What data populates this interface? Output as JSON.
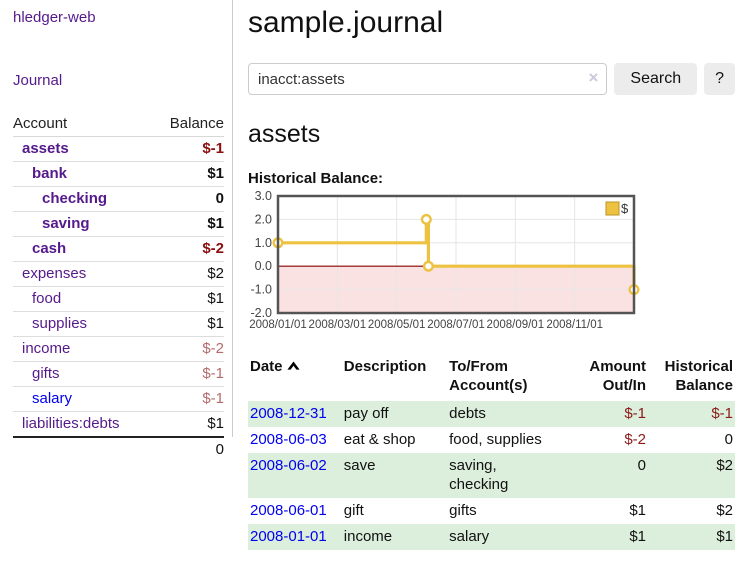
{
  "colors": {
    "link_purple": "#551A8B",
    "link_blue": "#0000EE",
    "negative_strong": "#8b0f0f",
    "negative_soft": "#b36b6b",
    "row_stripe_green": "#dceedc",
    "chart_line": "#edc240",
    "chart_line_border": "#b89526",
    "chart_negative_area": "#fbe2e2",
    "zero_line": "#8b0000",
    "grid": "#e6e6e6",
    "plot_border": "#545454"
  },
  "sidebar": {
    "brand": "hledger-web",
    "nav": {
      "journal": "Journal"
    },
    "table": {
      "account_header": "Account",
      "balance_header": "Balance"
    },
    "accounts": [
      {
        "label": "assets",
        "level": 1,
        "bold": true,
        "balance": "$-1",
        "balance_tone": "neg-strong",
        "link_tone": "purple"
      },
      {
        "label": "bank",
        "level": 2,
        "bold": true,
        "balance": "$1",
        "balance_tone": "pos",
        "link_tone": "purple"
      },
      {
        "label": "checking",
        "level": 3,
        "bold": true,
        "balance": "0",
        "balance_tone": "pos",
        "link_tone": "purple"
      },
      {
        "label": "saving",
        "level": 3,
        "bold": true,
        "balance": "$1",
        "balance_tone": "pos",
        "link_tone": "purple"
      },
      {
        "label": "cash",
        "level": 2,
        "bold": true,
        "balance": "$-2",
        "balance_tone": "neg-strong",
        "link_tone": "purple"
      },
      {
        "label": "expenses",
        "level": 1,
        "bold": false,
        "balance": "$2",
        "balance_tone": "pos",
        "link_tone": "purple"
      },
      {
        "label": "food",
        "level": 2,
        "bold": false,
        "balance": "$1",
        "balance_tone": "pos",
        "link_tone": "purple"
      },
      {
        "label": "supplies",
        "level": 2,
        "bold": false,
        "balance": "$1",
        "balance_tone": "pos",
        "link_tone": "purple"
      },
      {
        "label": "income",
        "level": 1,
        "bold": false,
        "balance": "$-2",
        "balance_tone": "neg-soft",
        "link_tone": "purple"
      },
      {
        "label": "gifts",
        "level": 2,
        "bold": false,
        "balance": "$-1",
        "balance_tone": "neg-soft",
        "link_tone": "purple"
      },
      {
        "label": "salary",
        "level": 2,
        "bold": false,
        "balance": "$-1",
        "balance_tone": "neg-soft",
        "link_tone": "blue"
      },
      {
        "label": "liabilities:debts",
        "level": 1,
        "bold": false,
        "balance": "$1",
        "balance_tone": "pos",
        "link_tone": "purple"
      }
    ],
    "total": "0"
  },
  "main": {
    "title": "sample.journal",
    "search": {
      "value": "inacct:assets",
      "clear_icon": "×",
      "button": "Search",
      "help_button": "?"
    },
    "account_heading": "assets",
    "chart_label": "Historical Balance:"
  },
  "register": {
    "headers": {
      "date": "Date",
      "description": "Description",
      "accounts": "To/From\nAccount(s)",
      "amount": "Amount\nOut/In",
      "balance": "Historical\nBalance"
    },
    "sort": {
      "column": "date",
      "direction": "ascending"
    },
    "rows": [
      {
        "date": "2008-12-31",
        "description": "pay off",
        "accounts": "debts",
        "amount": "$-1",
        "amount_negative": true,
        "balance": "$-1",
        "balance_negative": true,
        "shade": true
      },
      {
        "date": "2008-06-03",
        "description": "eat & shop",
        "accounts": "food, supplies",
        "amount": "$-2",
        "amount_negative": true,
        "balance": "0",
        "balance_negative": false,
        "shade": false
      },
      {
        "date": "2008-06-02",
        "description": "save",
        "accounts": "saving,\nchecking",
        "amount": "0",
        "amount_negative": false,
        "balance": "$2",
        "balance_negative": false,
        "shade": true
      },
      {
        "date": "2008-06-01",
        "description": "gift",
        "accounts": "gifts",
        "amount": "$1",
        "amount_negative": false,
        "balance": "$2",
        "balance_negative": false,
        "shade": false
      },
      {
        "date": "2008-01-01",
        "description": "income",
        "accounts": "salary",
        "amount": "$1",
        "amount_negative": false,
        "balance": "$1",
        "balance_negative": false,
        "shade": true
      }
    ]
  },
  "chart_data": {
    "type": "line",
    "step": true,
    "title": "Historical Balance of assets",
    "series": [
      {
        "name": "$",
        "points": [
          {
            "date": "2008-01-01",
            "m": 0,
            "v": 1
          },
          {
            "date": "2008-06-01",
            "m": 5.0,
            "v": 2
          },
          {
            "date": "2008-06-03",
            "m": 5.07,
            "v": 0
          },
          {
            "date": "2008-12-31",
            "m": 12,
            "v": -1
          }
        ]
      }
    ],
    "ylim": [
      -2,
      3
    ],
    "xlim_months": 12,
    "yticks": [
      {
        "v": 3,
        "label": "3.0"
      },
      {
        "v": 2,
        "label": "2.0"
      },
      {
        "v": 1,
        "label": "1.0"
      },
      {
        "v": 0,
        "label": "0.0"
      },
      {
        "v": -1,
        "label": "-1.0"
      },
      {
        "v": -2,
        "label": "-2.0"
      }
    ],
    "xticks": [
      {
        "m": 0,
        "label": "2008/01/01"
      },
      {
        "m": 2,
        "label": "2008/03/01"
      },
      {
        "m": 4,
        "label": "2008/05/01"
      },
      {
        "m": 6,
        "label": "2008/07/01"
      },
      {
        "m": 8,
        "label": "2008/09/01"
      },
      {
        "m": 10,
        "label": "2008/11/01"
      }
    ],
    "grid": true,
    "legend_position": "top-right",
    "negative_region_shaded": true
  }
}
